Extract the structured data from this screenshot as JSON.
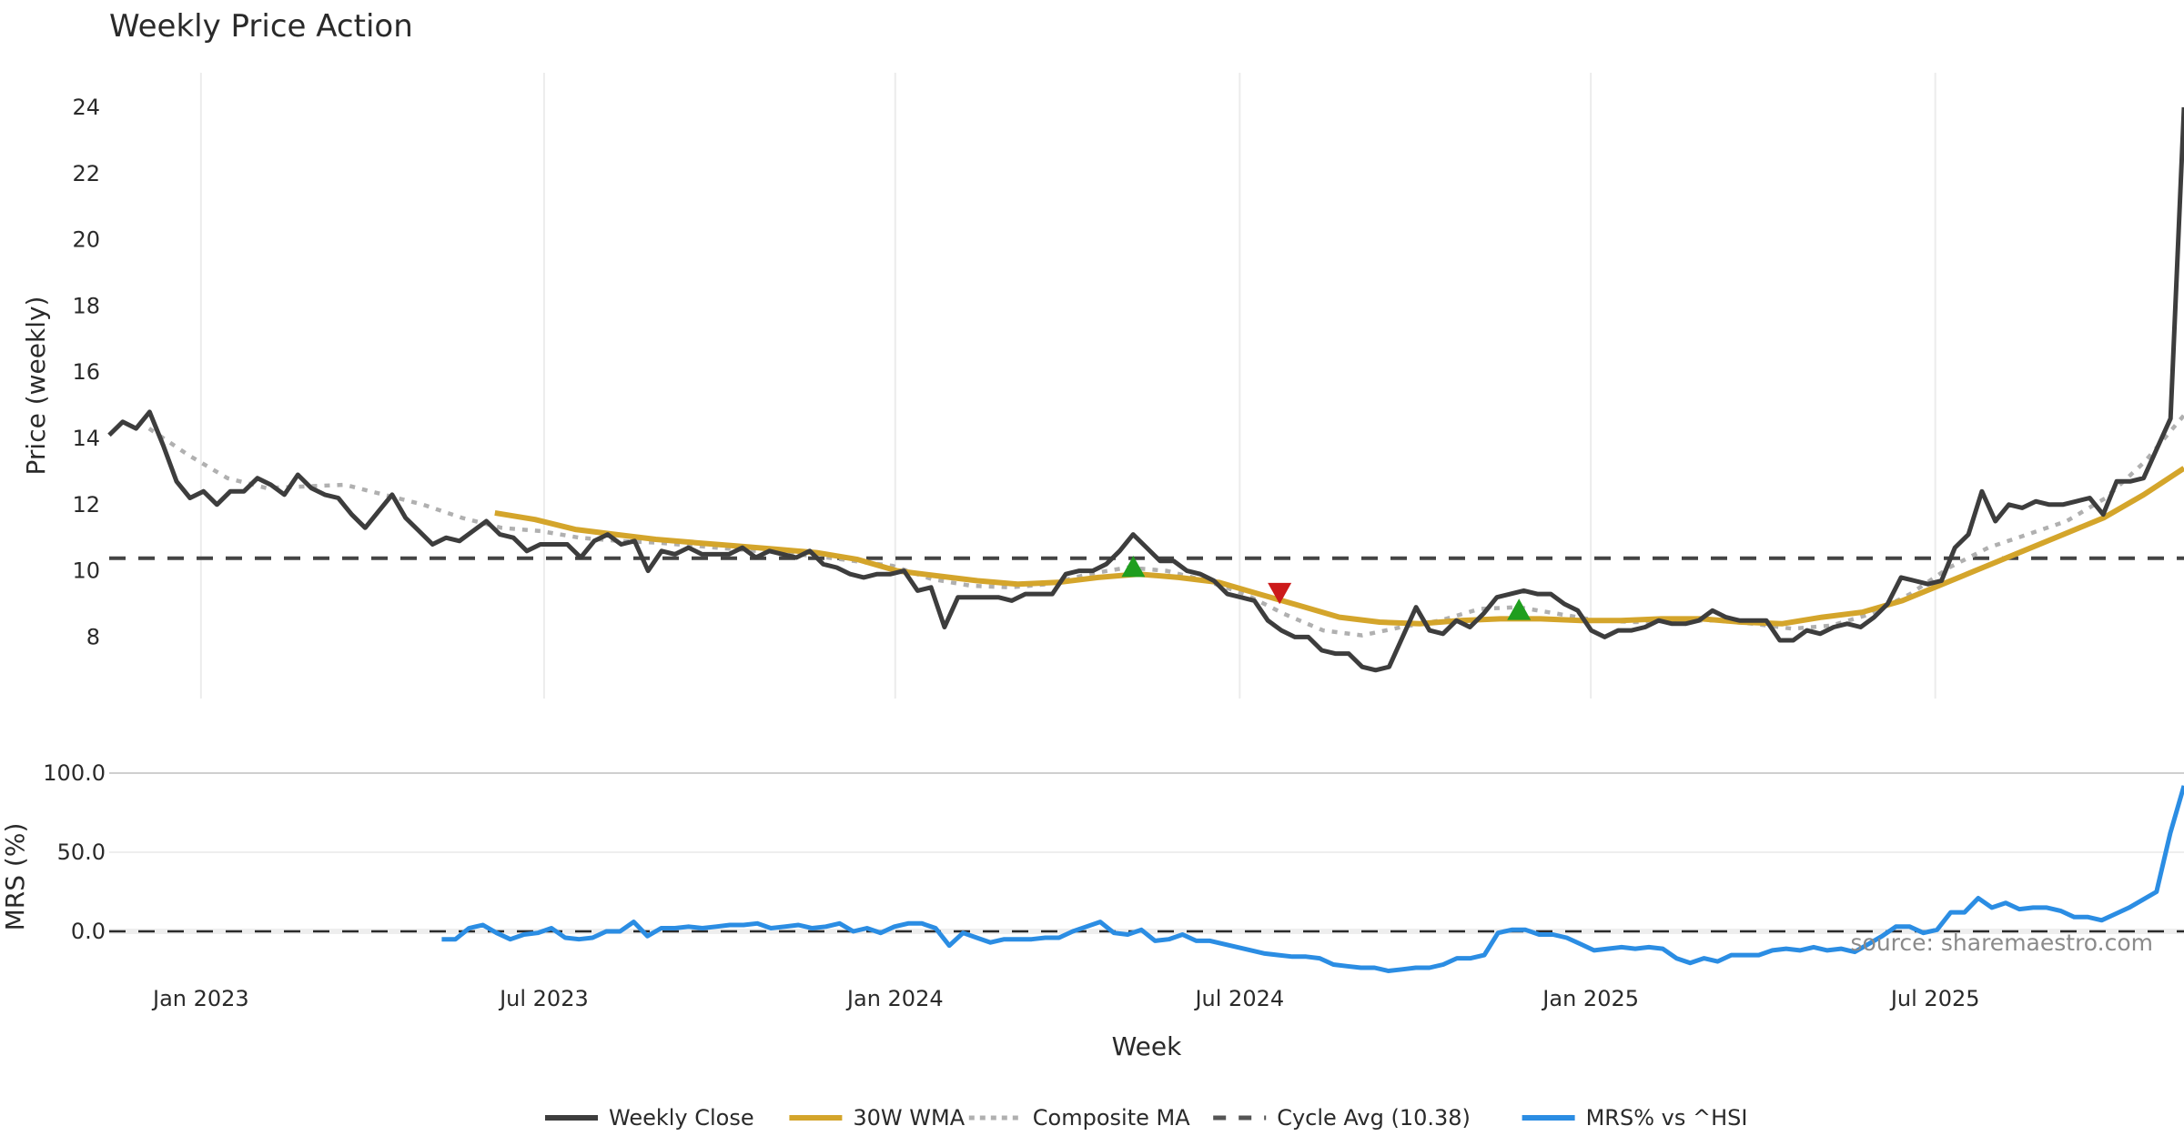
{
  "chart_data": [
    {
      "type": "line",
      "title": "Weekly Price Action",
      "xlabel": "Week",
      "ylabel": "Price (weekly)",
      "x_unit": "weeks since 2022-11-14",
      "x_start_date": "2022-11-14",
      "xlim": [
        0,
        156
      ],
      "ylim": [
        6,
        25
      ],
      "yticks": [
        8,
        10,
        12,
        14,
        16,
        18,
        20,
        22,
        24
      ],
      "xticks": [
        {
          "label": "Jan 2023",
          "week": 6.9
        },
        {
          "label": "Jul 2023",
          "week": 32.7
        },
        {
          "label": "Jan 2024",
          "week": 59.1
        },
        {
          "label": "Jul 2024",
          "week": 85.0
        },
        {
          "label": "Jan 2025",
          "week": 111.4
        },
        {
          "label": "Jul 2025",
          "week": 137.3
        }
      ],
      "grid": "vertical",
      "series": [
        {
          "name": "Weekly Close",
          "color": "#3d3d3d",
          "style": "solid",
          "start_week": 0,
          "end_week": 156,
          "values": [
            14.1,
            14.5,
            14.3,
            14.8,
            13.8,
            12.7,
            12.2,
            12.4,
            12.0,
            12.4,
            12.4,
            12.8,
            12.6,
            12.3,
            12.9,
            12.5,
            12.3,
            12.2,
            11.7,
            11.3,
            11.8,
            12.3,
            11.6,
            11.2,
            10.8,
            11.0,
            10.9,
            11.2,
            11.5,
            11.1,
            11.0,
            10.6,
            10.8,
            10.8,
            10.8,
            10.4,
            10.9,
            11.1,
            10.8,
            10.9,
            10.0,
            10.6,
            10.5,
            10.7,
            10.5,
            10.5,
            10.5,
            10.7,
            10.4,
            10.6,
            10.5,
            10.4,
            10.6,
            10.2,
            10.1,
            9.9,
            9.8,
            9.9,
            9.9,
            10.0,
            9.4,
            9.5,
            8.3,
            9.2,
            9.2,
            9.2,
            9.2,
            9.1,
            9.3,
            9.3,
            9.3,
            9.9,
            10.0,
            10.0,
            10.2,
            10.6,
            11.1,
            10.7,
            10.3,
            10.3,
            10.0,
            9.9,
            9.7,
            9.3,
            9.2,
            9.1,
            8.5,
            8.2,
            8.0,
            8.0,
            7.6,
            7.5,
            7.5,
            7.1,
            7.0,
            7.1,
            8.0,
            8.9,
            8.2,
            8.1,
            8.5,
            8.3,
            8.7,
            9.2,
            9.3,
            9.4,
            9.3,
            9.3,
            9.0,
            8.8,
            8.2,
            8.0,
            8.2,
            8.2,
            8.3,
            8.5,
            8.4,
            8.4,
            8.5,
            8.8,
            8.6,
            8.5,
            8.5,
            8.5,
            7.9,
            7.9,
            8.2,
            8.1,
            8.3,
            8.4,
            8.3,
            8.6,
            9.0,
            9.8,
            9.7,
            9.6,
            9.7,
            10.7,
            11.1,
            12.4,
            11.5,
            12.0,
            11.9,
            12.1,
            12.0,
            12.0,
            12.1,
            12.2,
            11.7,
            12.7,
            12.7,
            12.8,
            13.7,
            14.6,
            24.0
          ]
        },
        {
          "name": "30W WMA",
          "color": "#d4a52b",
          "style": "solid",
          "start_week": 29,
          "end_week": 156,
          "values": [
            11.75,
            11.55,
            11.25,
            11.1,
            10.95,
            10.85,
            10.75,
            10.65,
            10.55,
            10.35,
            10.0,
            9.85,
            9.7,
            9.6,
            9.65,
            9.8,
            9.9,
            9.8,
            9.65,
            9.3,
            8.95,
            8.6,
            8.45,
            8.4,
            8.5,
            8.55,
            8.55,
            8.5,
            8.5,
            8.55,
            8.55,
            8.45,
            8.4,
            8.6,
            8.75,
            9.1,
            9.6,
            10.1,
            10.6,
            11.1,
            11.6,
            12.3,
            13.1
          ]
        },
        {
          "name": "Composite MA",
          "color": "#b0b0b0",
          "style": "dotted",
          "start_week": 3,
          "end_week": 156,
          "values": [
            14.3,
            13.5,
            12.8,
            12.5,
            12.55,
            12.6,
            12.3,
            12.0,
            11.6,
            11.3,
            11.2,
            11.0,
            10.9,
            10.85,
            10.75,
            10.65,
            10.55,
            10.45,
            10.3,
            10.15,
            9.75,
            9.55,
            9.5,
            9.6,
            9.9,
            10.1,
            10.0,
            9.7,
            9.3,
            8.7,
            8.2,
            8.05,
            8.3,
            8.5,
            8.85,
            8.9,
            8.7,
            8.5,
            8.45,
            8.5,
            8.5,
            8.4,
            8.25,
            8.35,
            8.7,
            9.3,
            10.1,
            10.7,
            11.1,
            11.5,
            12.2,
            13.3,
            14.7
          ]
        },
        {
          "name": "Cycle Avg (10.38)",
          "color": "#444444",
          "style": "dashed",
          "constant": 10.38
        }
      ],
      "markers": [
        {
          "type": "buy",
          "shape": "triangle-up",
          "color": "#1f9e1f",
          "week": 77,
          "value": 10.1
        },
        {
          "type": "sell",
          "shape": "triangle-down",
          "color": "#cc1a1a",
          "week": 88,
          "value": 9.35
        },
        {
          "type": "buy",
          "shape": "triangle-up",
          "color": "#1f9e1f",
          "week": 106,
          "value": 8.8
        }
      ]
    },
    {
      "type": "line",
      "ylabel": "MRS (%)",
      "xlim": [
        0,
        156
      ],
      "ylim": [
        -35,
        105
      ],
      "yticks": [
        "0.0",
        "50.0",
        "100.0"
      ],
      "ytick_values": [
        0,
        50,
        100
      ],
      "series": [
        {
          "name": "MRS% vs ^HSI",
          "color": "#2b8de3",
          "style": "solid",
          "start_week": 25,
          "end_week": 156,
          "values": [
            -5,
            -5,
            2,
            4,
            -1,
            -5,
            -2,
            -1,
            2,
            -4,
            -5,
            -4,
            0,
            0,
            6,
            -3,
            2,
            2,
            3,
            2,
            3,
            4,
            4,
            5,
            2,
            3,
            4,
            2,
            3,
            5,
            0,
            2,
            -1,
            3,
            5,
            5,
            2,
            -9,
            -1,
            -4,
            -7,
            -5,
            -5,
            -5,
            -4,
            -4,
            0,
            3,
            6,
            -1,
            -2,
            1,
            -6,
            -5,
            -2,
            -6,
            -6,
            -8,
            -10,
            -12,
            -14,
            -15,
            -16,
            -16,
            -17,
            -21,
            -22,
            -23,
            -23,
            -25,
            -24,
            -23,
            -23,
            -21,
            -17,
            -17,
            -15,
            -1,
            1,
            1,
            -2,
            -2,
            -4,
            -8,
            -12,
            -11,
            -10,
            -11,
            -10,
            -11,
            -17,
            -20,
            -17,
            -19,
            -15,
            -15,
            -15,
            -12,
            -11,
            -12,
            -10,
            -12,
            -11,
            -13,
            -8,
            -3,
            3,
            3,
            -1,
            1,
            12,
            12,
            21,
            15,
            18,
            14,
            15,
            15,
            13,
            9,
            9,
            7,
            11,
            15,
            20,
            25,
            62,
            92
          ]
        },
        {
          "name": "zero line",
          "color": "#2a2a2a",
          "style": "dashed",
          "constant": 0
        }
      ]
    }
  ],
  "legend": {
    "position": "bottom-center",
    "items": [
      {
        "label": "Weekly Close",
        "color": "#3d3d3d",
        "style": "solid"
      },
      {
        "label": "30W WMA",
        "color": "#d4a52b",
        "style": "solid"
      },
      {
        "label": "Composite MA",
        "color": "#b0b0b0",
        "style": "dotted"
      },
      {
        "label": "Cycle Avg (10.38)",
        "color": "#555555",
        "style": "dashed"
      },
      {
        "label": "MRS% vs ^HSI",
        "color": "#2b8de3",
        "style": "solid"
      }
    ]
  },
  "source_note": "source: sharemaestro.com"
}
